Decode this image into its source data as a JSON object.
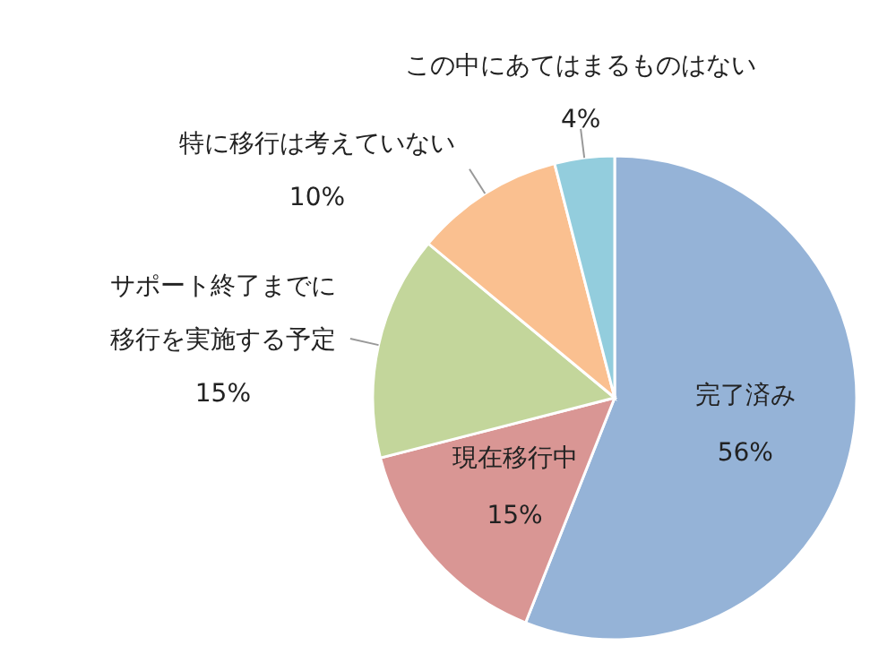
{
  "chart_data": {
    "type": "pie",
    "categories": [
      "完了済み",
      "現在移行中",
      "サポート終了までに移行を実施する予定",
      "特に移行は考えていない",
      "この中にあてはまるものはない"
    ],
    "values": [
      56,
      15,
      15,
      10,
      4
    ],
    "colors": [
      "#95b3d7",
      "#d99694",
      "#c3d69b",
      "#fac090",
      "#93cddd"
    ],
    "value_labels": [
      "56%",
      "15%",
      "15%",
      "10%",
      "4%"
    ]
  }
}
